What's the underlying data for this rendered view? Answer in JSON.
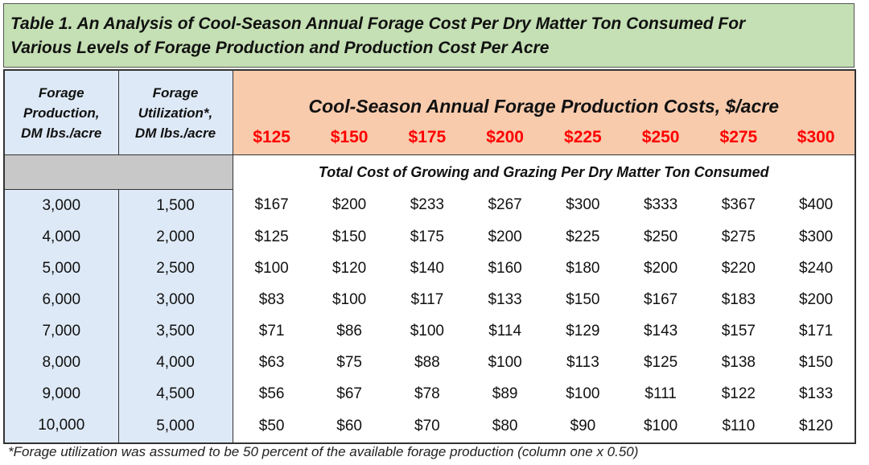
{
  "title": {
    "line1": "Table 1. An Analysis of Cool-Season Annual Forage Cost Per Dry Matter Ton Consumed For",
    "line2": "Various Levels of Forage Production and Production Cost Per Acre",
    "background": "#c5e0b4"
  },
  "headers": {
    "col1": [
      "Forage",
      "Production,",
      "DM lbs./acre"
    ],
    "col2": [
      "Forage",
      "Utilization*,",
      "DM lbs./acre"
    ],
    "cost_title": "Cool-Season Annual Forage Production Costs, $/acre",
    "prices": [
      "$125",
      "$150",
      "$175",
      "$200",
      "$225",
      "$250",
      "$275",
      "$300"
    ],
    "subtitle": "Total Cost of Growing and Grazing Per Dry Matter Ton Consumed"
  },
  "colors": {
    "label_bg": "#dde9f6",
    "cost_header_bg": "#f8cbad",
    "price_text": "#ff0000",
    "gray_row": "#c8c8c8"
  },
  "rows": [
    {
      "production": "3,000",
      "utilization": "1,500",
      "costs": [
        "$167",
        "$200",
        "$233",
        "$267",
        "$300",
        "$333",
        "$367",
        "$400"
      ]
    },
    {
      "production": "4,000",
      "utilization": "2,000",
      "costs": [
        "$125",
        "$150",
        "$175",
        "$200",
        "$225",
        "$250",
        "$275",
        "$300"
      ]
    },
    {
      "production": "5,000",
      "utilization": "2,500",
      "costs": [
        "$100",
        "$120",
        "$140",
        "$160",
        "$180",
        "$200",
        "$220",
        "$240"
      ]
    },
    {
      "production": "6,000",
      "utilization": "3,000",
      "costs": [
        "$83",
        "$100",
        "$117",
        "$133",
        "$150",
        "$167",
        "$183",
        "$200"
      ]
    },
    {
      "production": "7,000",
      "utilization": "3,500",
      "costs": [
        "$71",
        "$86",
        "$100",
        "$114",
        "$129",
        "$143",
        "$157",
        "$171"
      ]
    },
    {
      "production": "8,000",
      "utilization": "4,000",
      "costs": [
        "$63",
        "$75",
        "$88",
        "$100",
        "$113",
        "$125",
        "$138",
        "$150"
      ]
    },
    {
      "production": "9,000",
      "utilization": "4,500",
      "costs": [
        "$56",
        "$67",
        "$78",
        "$89",
        "$100",
        "$111",
        "$122",
        "$133"
      ]
    },
    {
      "production": "10,000",
      "utilization": "5,000",
      "costs": [
        "$50",
        "$60",
        "$70",
        "$80",
        "$90",
        "$100",
        "$110",
        "$120"
      ]
    }
  ],
  "footnote": "*Forage utilization was assumed to be 50 percent of the available forage production (column one x 0.50)"
}
